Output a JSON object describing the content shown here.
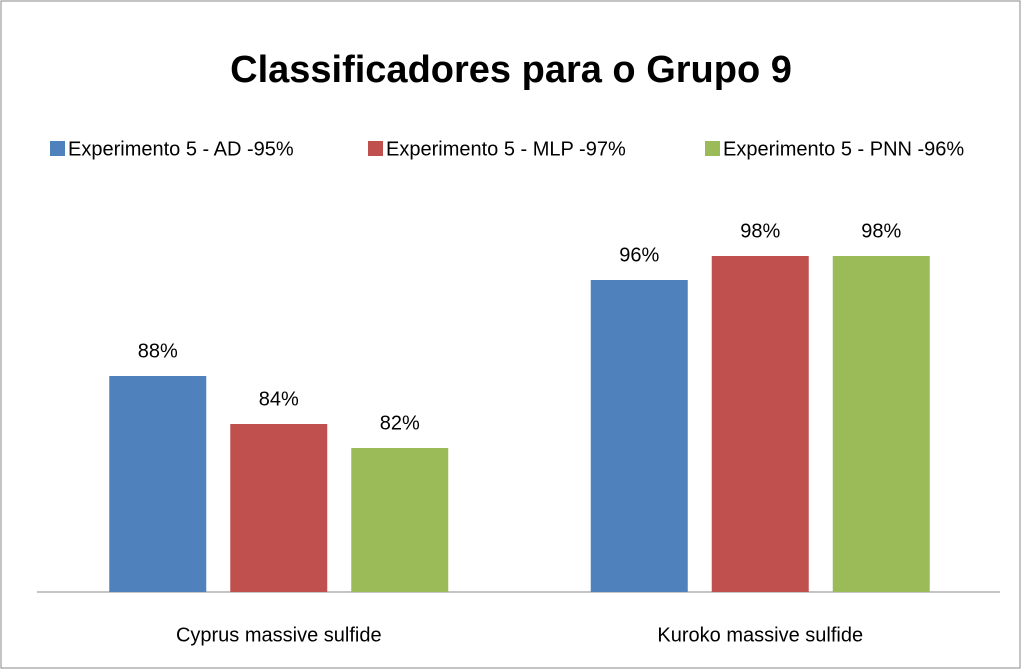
{
  "chart_data": {
    "type": "bar",
    "title": "Classificadores para o Grupo 9",
    "categories": [
      "Cyprus massive sulfide",
      "Kuroko massive sulfide"
    ],
    "series": [
      {
        "name": "Experimento 5 - AD -95%",
        "color": "#4f81bd",
        "values": [
          88,
          96
        ],
        "value_labels": [
          "88%",
          "96%"
        ]
      },
      {
        "name": "Experimento 5 - MLP -97%",
        "color": "#c0504d",
        "values": [
          84,
          98
        ],
        "value_labels": [
          "84%",
          "98%"
        ]
      },
      {
        "name": "Experimento 5 - PNN -96%",
        "color": "#9bbb59",
        "values": [
          82,
          98
        ],
        "value_labels": [
          "82%",
          "98%"
        ]
      }
    ],
    "ylim": [
      70,
      100
    ],
    "legend": "top"
  }
}
